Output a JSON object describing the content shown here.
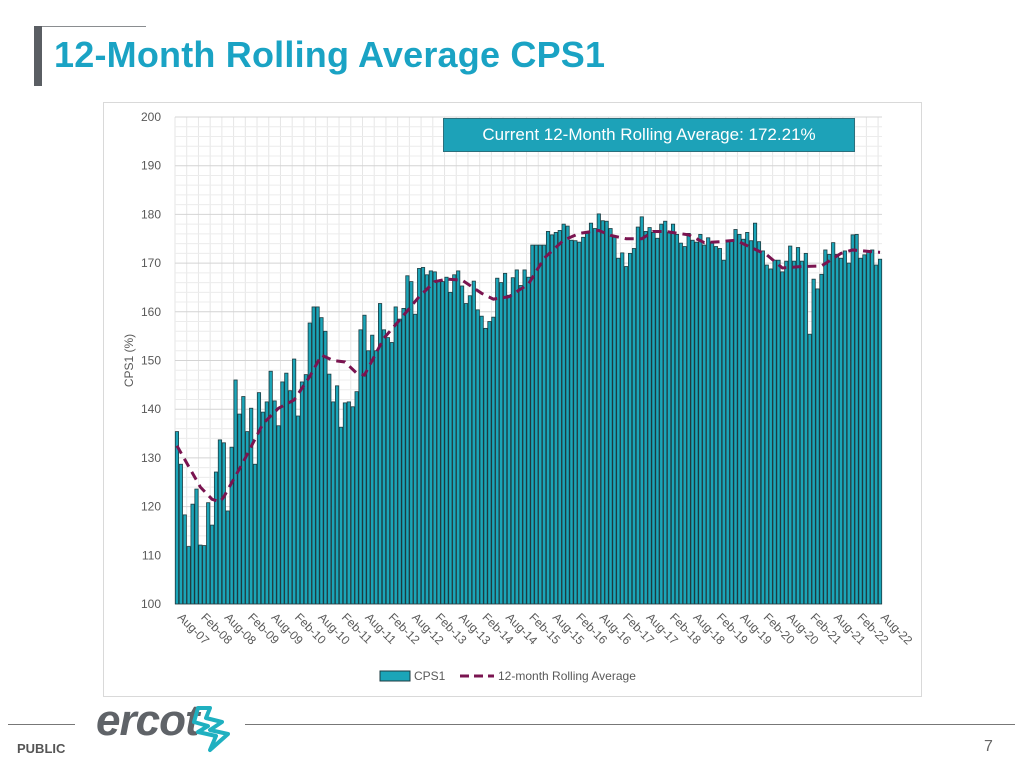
{
  "slide": {
    "title": "12-Month Rolling Average CPS1",
    "footer_label": "PUBLIC",
    "page_number": "7",
    "logo_text": "ercot"
  },
  "colors": {
    "title": "#1aa3c4",
    "bar": "#1ba5b8",
    "bar_outline": "#1d3b40",
    "rolling": "#7a1450",
    "annotation_bg": "#1da2b8"
  },
  "chart_data": {
    "type": "bar",
    "title": "",
    "annotation": "Current 12-Month Rolling Average: 172.21%",
    "xlabel": "",
    "ylabel": "CPS1 (%)",
    "ylim": [
      100,
      200
    ],
    "yticks": [
      100,
      110,
      120,
      130,
      140,
      150,
      160,
      170,
      180,
      190,
      200
    ],
    "grid": true,
    "legend_position": "bottom",
    "start_month": "Aug-07",
    "xtick_labels": [
      "Aug-07",
      "Feb-08",
      "Aug-08",
      "Feb-09",
      "Aug-09",
      "Feb-10",
      "Aug-10",
      "Feb-11",
      "Aug-11",
      "Feb-12",
      "Aug-12",
      "Feb-13",
      "Aug-13",
      "Feb-14",
      "Aug-14",
      "Feb-15",
      "Aug-15",
      "Feb-16",
      "Aug-16",
      "Feb-17",
      "Aug-17",
      "Feb-18",
      "Aug-18",
      "Feb-19",
      "Aug-19",
      "Feb-20",
      "Aug-20",
      "Feb-21",
      "Aug-21",
      "Feb-22",
      "Aug-22"
    ],
    "series": [
      {
        "name": "CPS1",
        "type": "bar",
        "values": [
          135.4,
          128.7,
          118.3,
          111.8,
          120.5,
          123.6,
          112.1,
          112.0,
          120.8,
          116.2,
          127.1,
          133.7,
          133.1,
          119.1,
          132.2,
          146.0,
          139.0,
          142.6,
          135.4,
          140.2,
          128.7,
          143.4,
          139.4,
          141.5,
          147.8,
          141.7,
          136.6,
          145.6,
          147.4,
          143.8,
          150.3,
          138.6,
          145.6,
          147.1,
          157.7,
          161.0,
          161.0,
          158.8,
          156.0,
          147.2,
          141.5,
          144.8,
          136.3,
          141.3,
          141.5,
          140.5,
          143.6,
          156.3,
          159.3,
          152.0,
          155.2,
          152.0,
          161.7,
          156.3,
          154.7,
          153.7,
          161.0,
          158.5,
          160.7,
          167.4,
          166.2,
          159.5,
          168.9,
          169.1,
          167.6,
          168.4,
          168.2,
          166.2,
          166.2,
          167.1,
          164.0,
          167.6,
          168.4,
          165.3,
          161.7,
          163.3,
          166.3,
          160.4,
          159.1,
          156.6,
          158.0,
          158.9,
          166.9,
          166.0,
          167.9,
          163.4,
          167.0,
          168.6,
          165.4,
          168.6,
          167.1,
          173.7,
          173.7,
          173.7,
          173.7,
          176.5,
          175.8,
          176.3,
          176.7,
          178.0,
          177.6,
          174.7,
          174.6,
          174.3,
          175.3,
          176.1,
          178.2,
          177.1,
          180.1,
          178.7,
          178.6,
          177.1,
          175.3,
          171.0,
          172.1,
          169.3,
          172.0,
          173.0,
          177.4,
          179.5,
          176.5,
          177.3,
          176.3,
          175.1,
          178.0,
          178.6,
          176.3,
          178.0,
          175.9,
          174.1,
          173.4,
          176.1,
          174.7,
          174.3,
          175.9,
          173.7,
          175.2,
          174.3,
          173.4,
          173.0,
          170.6,
          174.4,
          174.6,
          176.9,
          175.9,
          174.9,
          176.3,
          174.6,
          178.2,
          174.4,
          172.5,
          169.6,
          168.8,
          170.6,
          170.6,
          168.2,
          170.4,
          173.5,
          170.4,
          173.2,
          170.4,
          172.0,
          155.4,
          166.7,
          164.7,
          167.7,
          172.7,
          171.8,
          174.2,
          171.8,
          171.0,
          172.5,
          170.0,
          175.8,
          175.9,
          171.0,
          171.7,
          172.5,
          172.7,
          169.6,
          170.8
        ]
      },
      {
        "name": "12-month Rolling Average",
        "type": "line",
        "style": "dashed",
        "points": [
          [
            0,
            132.5
          ],
          [
            6,
            124.0
          ],
          [
            9,
            121.5
          ],
          [
            11,
            121.0
          ],
          [
            12,
            122.0
          ],
          [
            17,
            129.2
          ],
          [
            22,
            137.0
          ],
          [
            26,
            140.2
          ],
          [
            30,
            141.9
          ],
          [
            34,
            146.7
          ],
          [
            37,
            151.1
          ],
          [
            40,
            150.0
          ],
          [
            43,
            149.7
          ],
          [
            46,
            147.4
          ],
          [
            48,
            147.0
          ],
          [
            53,
            154.6
          ],
          [
            57,
            158.3
          ],
          [
            62,
            163.1
          ],
          [
            66,
            166.2
          ],
          [
            69,
            166.7
          ],
          [
            73,
            166.5
          ],
          [
            78,
            163.8
          ],
          [
            81,
            162.6
          ],
          [
            85,
            163.1
          ],
          [
            90,
            165.7
          ],
          [
            94,
            171.0
          ],
          [
            99,
            174.7
          ],
          [
            103,
            176.1
          ],
          [
            108,
            176.7
          ],
          [
            111,
            175.7
          ],
          [
            115,
            175.0
          ],
          [
            119,
            175.0
          ],
          [
            122,
            176.5
          ],
          [
            125,
            176.5
          ],
          [
            131,
            175.8
          ],
          [
            135,
            174.2
          ],
          [
            139,
            174.4
          ],
          [
            143,
            174.7
          ],
          [
            147,
            173.2
          ],
          [
            151,
            171.7
          ],
          [
            155,
            169.0
          ],
          [
            160,
            169.3
          ],
          [
            165,
            169.4
          ],
          [
            170,
            172.0
          ],
          [
            173,
            172.7
          ],
          [
            177,
            172.4
          ],
          [
            180,
            172.21
          ]
        ]
      }
    ]
  }
}
